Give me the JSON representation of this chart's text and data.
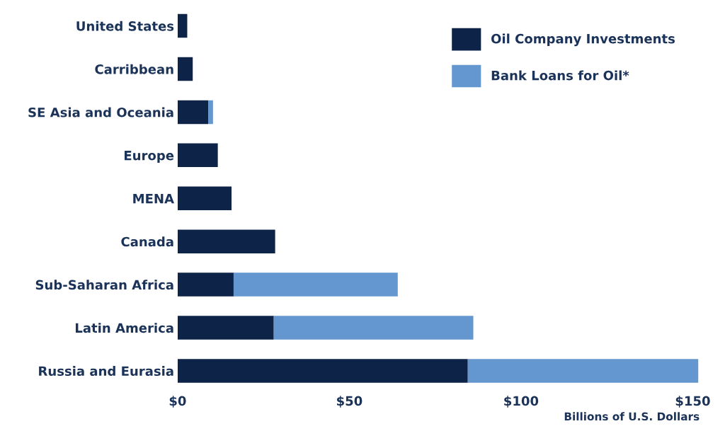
{
  "chart_data": {
    "type": "bar",
    "orientation": "horizontal",
    "stacked": true,
    "categories": [
      "United States",
      "Carribbean",
      "SE Asia and Oceania",
      "Europe",
      "MENA",
      "Canada",
      "Sub-Saharan Africa",
      "Latin America",
      "Russia and Eurasia"
    ],
    "series": [
      {
        "name": "Oil Company Investments",
        "color": "#0d2348",
        "values": [
          2.8,
          4.4,
          8.9,
          11.7,
          15.7,
          28.4,
          16.3,
          28,
          84.5
        ]
      },
      {
        "name": "Bank Loans for Oil*",
        "color": "#6497cf",
        "values": [
          null,
          null,
          1.4,
          null,
          null,
          null,
          47.8,
          58.1,
          67.1
        ]
      }
    ],
    "xlim": [
      0,
      152
    ],
    "xticks": [
      {
        "value": 0,
        "label": "$0"
      },
      {
        "value": 50,
        "label": "$50"
      },
      {
        "value": 100,
        "label": "$100"
      },
      {
        "value": 150,
        "label": "$150"
      }
    ],
    "xlabel": "Billions of U.S. Dollars",
    "legend": "top right",
    "grid": false
  }
}
